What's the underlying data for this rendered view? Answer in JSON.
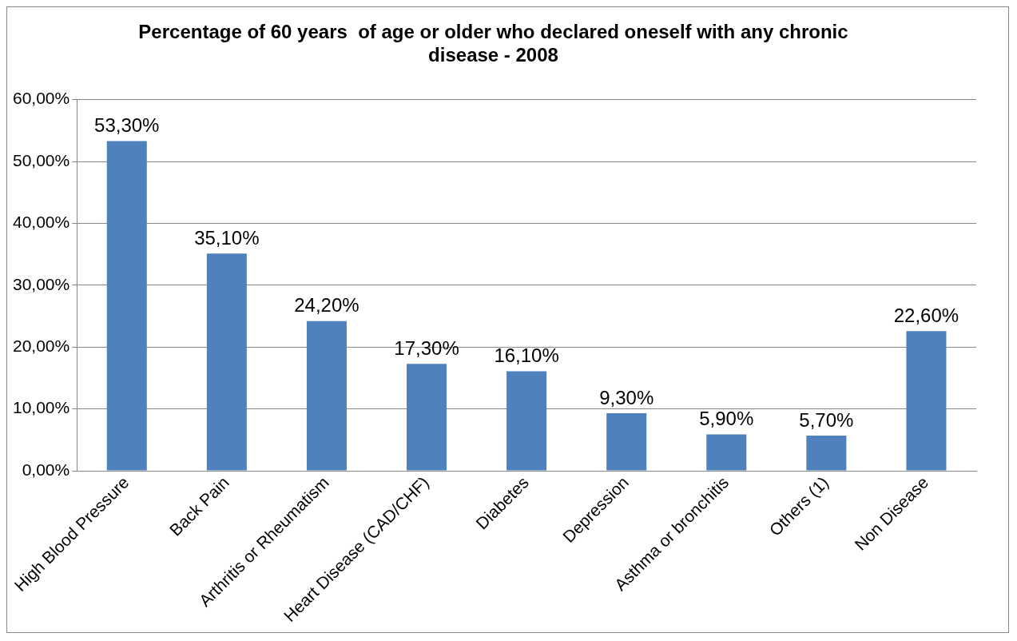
{
  "chart_data": {
    "type": "bar",
    "title": "Percentage of 60 years  of age or older who declared oneself with any chronic disease - 2008",
    "categories": [
      "High Blood Pressure",
      "Back Pain",
      "Arthritis or Rheumatism",
      "Heart Disease (CAD/CHF)",
      "Diabetes",
      "Depression",
      "Asthma or bronchitis",
      "Others (1)",
      "Non Disease"
    ],
    "values": [
      53.3,
      35.1,
      24.2,
      17.3,
      16.1,
      9.3,
      5.9,
      5.7,
      22.6
    ],
    "value_labels": [
      "53,30%",
      "35,10%",
      "24,20%",
      "17,30%",
      "16,10%",
      "9,30%",
      "5,90%",
      "5,70%",
      "22,60%"
    ],
    "color": "#4f81bd",
    "ylim": [
      0,
      60
    ],
    "yticks": [
      {
        "value": 0,
        "label": "0,00%"
      },
      {
        "value": 10,
        "label": "10,00%"
      },
      {
        "value": 20,
        "label": "20,00%"
      },
      {
        "value": 30,
        "label": "30,00%"
      },
      {
        "value": 40,
        "label": "40,00%"
      },
      {
        "value": 50,
        "label": "50,00%"
      },
      {
        "value": 60,
        "label": "60,00%"
      }
    ],
    "grid": "y",
    "legend": false
  }
}
